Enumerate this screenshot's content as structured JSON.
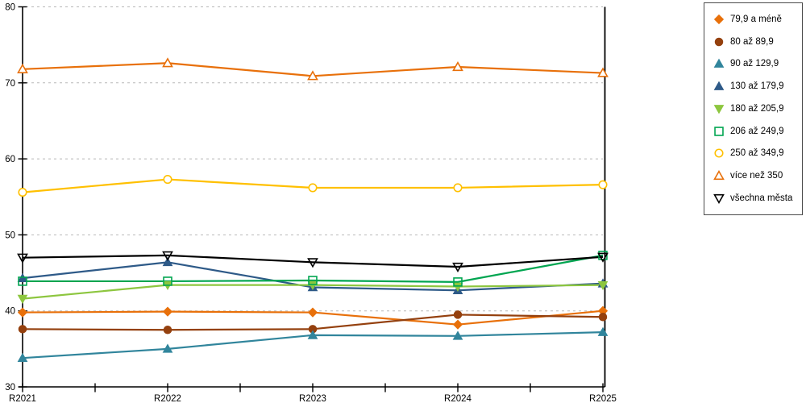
{
  "chart_data": {
    "type": "line",
    "title": "",
    "xlabel": "",
    "ylabel": "",
    "categories": [
      "R2021",
      "R2022",
      "R2023",
      "R2024",
      "R2025"
    ],
    "y_axis": {
      "min": 30,
      "max": 80,
      "step": 10,
      "tick_labels": [
        "30",
        "40",
        "50",
        "60",
        "70",
        "80"
      ]
    },
    "grid": "horizontal dashed gray",
    "legend_position": "right",
    "series": [
      {
        "name": "79,9 a méně",
        "marker": "diamond",
        "style": "filled",
        "color": "#E8700A",
        "values": [
          39.8,
          39.9,
          39.8,
          38.2,
          40.0
        ]
      },
      {
        "name": "80 až 89,9",
        "marker": "circle",
        "style": "filled",
        "color": "#94400E",
        "values": [
          37.6,
          37.5,
          37.6,
          39.5,
          39.2
        ]
      },
      {
        "name": "90 až 129,9",
        "marker": "triangle-up",
        "style": "filled",
        "color": "#31859C",
        "values": [
          33.8,
          35.0,
          36.8,
          36.7,
          37.2
        ]
      },
      {
        "name": "130 až 179,9",
        "marker": "triangle-up",
        "style": "filled",
        "color": "#2E5A88",
        "values": [
          44.3,
          46.4,
          43.1,
          42.7,
          43.6
        ]
      },
      {
        "name": "180 až 205,9",
        "marker": "triangle-down",
        "style": "filled",
        "color": "#8DC63F",
        "values": [
          41.6,
          43.4,
          43.4,
          43.2,
          43.4
        ]
      },
      {
        "name": "206 až 249,9",
        "marker": "square",
        "style": "open",
        "color": "#00A550",
        "values": [
          43.9,
          43.9,
          44.0,
          43.8,
          47.3
        ]
      },
      {
        "name": "250 až 349,9",
        "marker": "circle",
        "style": "hollow",
        "color": "#FFC000",
        "values": [
          55.6,
          57.3,
          56.2,
          56.2,
          56.6
        ]
      },
      {
        "name": "více než 350",
        "marker": "triangle-up",
        "style": "hollow",
        "color": "#E8700A",
        "values": [
          71.8,
          72.6,
          70.9,
          72.1,
          71.3
        ]
      },
      {
        "name": "všechna města",
        "marker": "triangle-down",
        "style": "open",
        "color": "#000000",
        "values": [
          47.0,
          47.3,
          46.4,
          45.8,
          47.1
        ]
      }
    ],
    "gridline_color": "#b8b8b8",
    "axis_color": "#000000"
  }
}
